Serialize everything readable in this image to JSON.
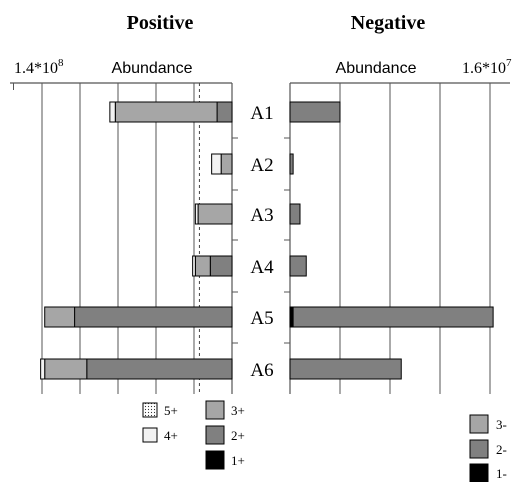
{
  "chart_data": [
    {
      "type": "bar",
      "orientation": "horizontal",
      "stacked": true,
      "x_direction": "reversed",
      "title": "Positive",
      "xlabel": "Abundance",
      "axis_max_label": "1.4*10",
      "axis_max_exponent": "8",
      "xlim": [
        0,
        140000000
      ],
      "grid": "vertical",
      "reference_line": 24000000,
      "categories": [
        "A1",
        "A2",
        "A3",
        "A4",
        "A5",
        "A6"
      ],
      "series": [
        {
          "name": "2+",
          "color": "#808080",
          "values": [
            11000000,
            0,
            0,
            16000000,
            116000000,
            107000000
          ]
        },
        {
          "name": "3+",
          "color": "#a6a6a6",
          "values": [
            75000000,
            8000000,
            25000000,
            11000000,
            22000000,
            31000000
          ]
        },
        {
          "name": "4+",
          "color": "#f2f2f2",
          "values": [
            4000000,
            7000000,
            2000000,
            2000000,
            0,
            3000000
          ]
        },
        {
          "name": "5+",
          "color": "#d4d4d4",
          "values": [
            0,
            0,
            0,
            0,
            0,
            0
          ]
        },
        {
          "name": "1+",
          "color": "#000000",
          "values": [
            0,
            0,
            0,
            0,
            0,
            0
          ]
        }
      ]
    },
    {
      "type": "bar",
      "orientation": "horizontal",
      "stacked": true,
      "title": "Negative",
      "xlabel": "Abundance",
      "axis_max_label": "1.6*10",
      "axis_max_exponent": "7",
      "xlim": [
        0,
        16000000
      ],
      "grid": "vertical",
      "categories": [
        "A1",
        "A2",
        "A3",
        "A4",
        "A5",
        "A6"
      ],
      "series": [
        {
          "name": "1-",
          "color": "#000000",
          "values": [
            0,
            0,
            0,
            0,
            250000,
            0
          ]
        },
        {
          "name": "2-",
          "color": "#808080",
          "values": [
            4000000,
            250000,
            800000,
            1300000,
            16000000,
            8900000
          ]
        },
        {
          "name": "3-",
          "color": "#a6a6a6",
          "values": [
            0,
            0,
            0,
            0,
            0,
            0
          ]
        }
      ]
    }
  ],
  "legend_positive": [
    {
      "label": "5+",
      "swatch": "dotted"
    },
    {
      "label": "3+",
      "swatch": "#a6a6a6"
    },
    {
      "label": "4+",
      "swatch": "#f2f2f2"
    },
    {
      "label": "2+",
      "swatch": "#808080"
    },
    {
      "label": "1+",
      "swatch": "#000000"
    }
  ],
  "legend_negative": [
    {
      "label": "3-",
      "swatch": "#a6a6a6"
    },
    {
      "label": "2-",
      "swatch": "#808080"
    },
    {
      "label": "1-",
      "swatch": "#000000"
    }
  ]
}
